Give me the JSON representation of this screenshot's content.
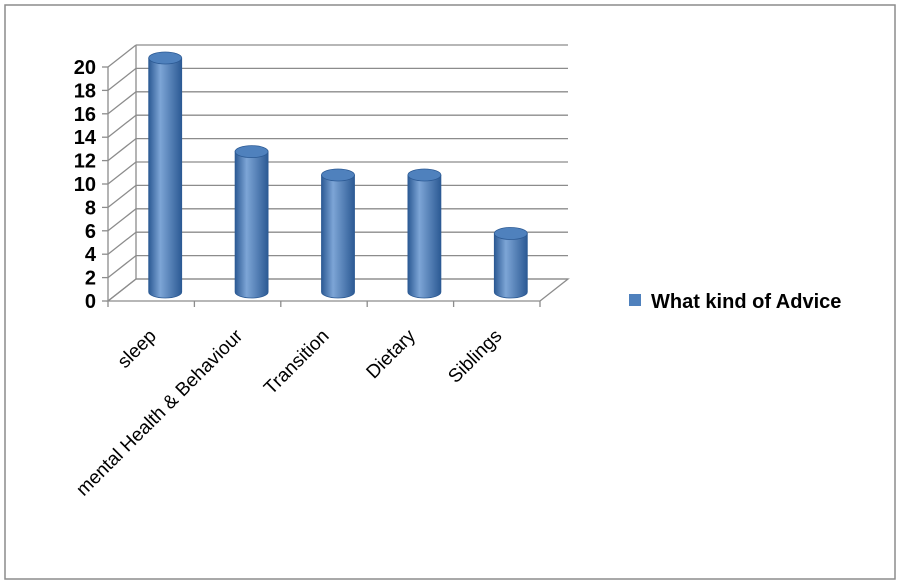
{
  "chart_data": {
    "type": "bar",
    "categories": [
      "sleep",
      "mental Health & Behaviour",
      "Transition",
      "Dietary",
      "Siblings"
    ],
    "series": [
      {
        "name": "What kind of Advice",
        "values": [
          20,
          12,
          10,
          10,
          5
        ]
      }
    ],
    "title": "",
    "xlabel": "",
    "ylabel": "",
    "ylim": [
      0,
      20
    ],
    "ytick_step": 2,
    "grid": true,
    "legend_position": "right",
    "bar_shape": "cylinder",
    "colors": {
      "bar": "#4f81bd",
      "bar_dark": "#2c5a94",
      "bar_light": "#7da5d6",
      "grid": "#8c8c8c",
      "border": "#8c8c8c"
    }
  }
}
